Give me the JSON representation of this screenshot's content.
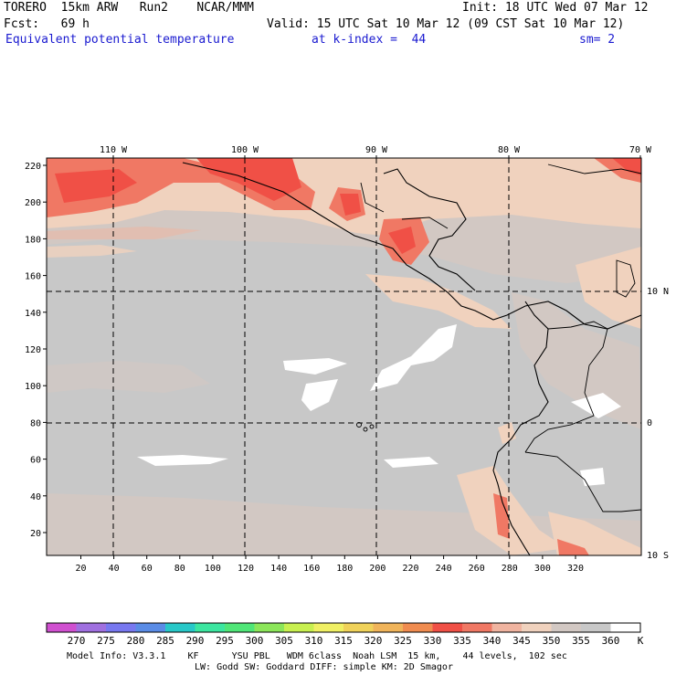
{
  "header": {
    "model": "TORERO  15km ARW   Run2    NCAR/MMM",
    "init": "Init: 18 UTC Wed 07 Mar 12",
    "fcst": "Fcst:   69 h",
    "valid": "Valid: 15 UTC Sat 10 Mar 12 (09 CST Sat 10 Mar 12)",
    "field": "Equivalent potential temperature",
    "level": "at k-index =  44",
    "smooth": "sm= 2"
  },
  "map": {
    "lon_labels": [
      "110 W",
      "100 W",
      "90 W",
      "80 W",
      "70 W"
    ],
    "lat_labels": [
      "10 N",
      "0",
      "10 S"
    ],
    "y_ticks": [
      "220",
      "200",
      "180",
      "160",
      "140",
      "120",
      "100",
      "80",
      "60",
      "40",
      "20"
    ],
    "x_ticks": [
      "20",
      "40",
      "60",
      "80",
      "100",
      "120",
      "140",
      "160",
      "180",
      "200",
      "220",
      "240",
      "260",
      "280",
      "300",
      "320"
    ]
  },
  "colorbar": {
    "unit": "K",
    "levels": [
      "270",
      "275",
      "280",
      "285",
      "290",
      "295",
      "300",
      "305",
      "310",
      "315",
      "320",
      "325",
      "330",
      "335",
      "340",
      "345",
      "350",
      "355",
      "360"
    ],
    "colors": [
      "#d050d0",
      "#a070e0",
      "#7878f0",
      "#5a8ce6",
      "#28c8c8",
      "#3ce6a0",
      "#50e678",
      "#8ce65a",
      "#c8f050",
      "#f0f064",
      "#f0d25a",
      "#f0b45a",
      "#f08c50",
      "#f05046",
      "#f07864",
      "#f0b4a0",
      "#f0d2be",
      "#d2c8c3",
      "#c8c8c8",
      "#ffffff"
    ]
  },
  "footer": {
    "line1": "Model Info: V3.3.1    KF      YSU PBL   WDM 6class  Noah LSM  15 km,    44 levels,  102 sec",
    "line2": "LW: Godd SW: Goddard DIFF: simple KM: 2D Smagor"
  }
}
